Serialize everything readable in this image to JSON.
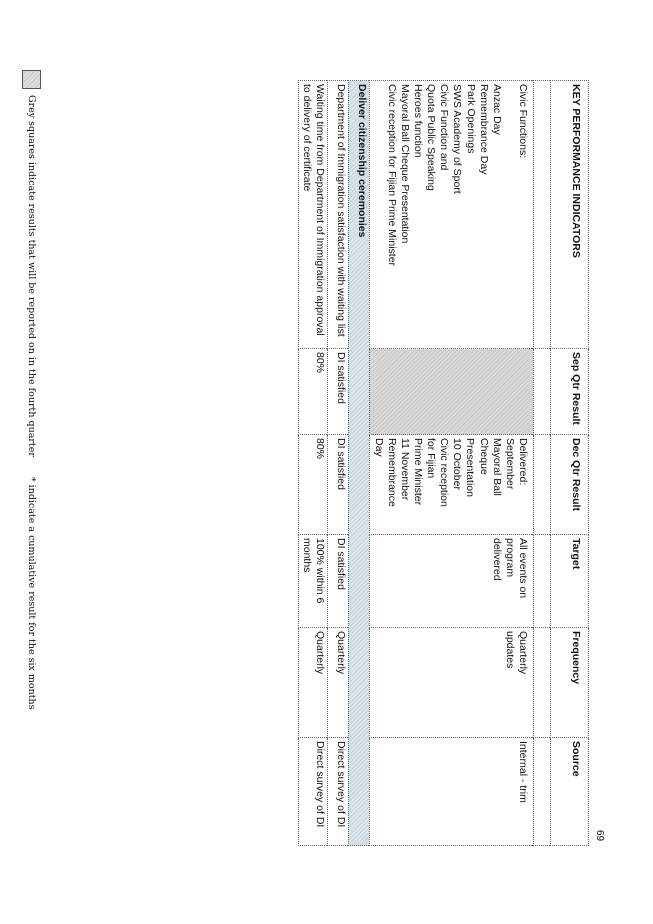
{
  "page_number": "69",
  "headers": [
    "KEY PERFORMANCE INDICATORS",
    "Sep Qtr Result",
    "Dec Qtr Result",
    "Target",
    "Frequency",
    "Source"
  ],
  "civic": {
    "kpi_lines": [
      "Civic Functions:",
      "",
      "Anzac Day",
      "Remembrance Day",
      "Park Openings",
      "SWS Academy of Sport",
      "Civic Function and",
      "Quota Public Speaking",
      "Heroes function",
      "Mayoral Ball Cheque Presentation",
      "Civic reception for Fijian Prime Minister"
    ],
    "dec_lines": [
      "Delivered:",
      "September",
      "Mayoral Ball",
      "Cheque",
      "Presentation",
      "10 October",
      "Civic reception",
      "for Fijian",
      "Prime Minister",
      "11 November",
      "Remembrance",
      "Day"
    ],
    "target_lines": [
      "All events on",
      "program",
      "delivered"
    ],
    "frequency_lines": [
      "Quarterly",
      "updates"
    ],
    "source": "Internal - trim"
  },
  "section_title": "Deliver citizenship ceremonies",
  "rows": [
    {
      "kpi": "Department of Immigration satisfaction with waiting list",
      "sep": "DI satisfied",
      "dec": "DI satisfied",
      "target": "DI satisfied",
      "frequency": "Quarterly",
      "source": "Direct survey of DI"
    },
    {
      "kpi": "Waiting time from Department of Immigration approval to delivery of certificate",
      "sep": "80%",
      "dec": "80%",
      "target": "100% within 6 months",
      "frequency": "Quarterly",
      "source": "Direct survey of DI"
    }
  ],
  "footer": {
    "legend_text": "Grey squares indicate results that will be reported on in the fourth quarter",
    "note": "* indicate a cumulative result for the six months"
  },
  "colors": {
    "grey_cell": "#d1d1d1",
    "section_band": "#d0dbe2"
  }
}
